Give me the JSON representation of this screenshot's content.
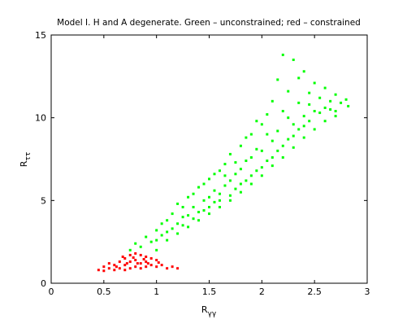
{
  "chart_data": {
    "type": "scatter",
    "title": "Model I. H and A degenerate. Green – unconstrained; red – constrained",
    "xlabel": "R",
    "xlabel_subscript": "γγ",
    "ylabel": "R",
    "ylabel_subscript": "ττ",
    "xlim": [
      0,
      3
    ],
    "ylim": [
      0,
      15
    ],
    "xticks": [
      0,
      0.5,
      1,
      1.5,
      2,
      2.5,
      3
    ],
    "yticks": [
      0,
      5,
      10,
      15
    ],
    "grid": false,
    "series": [
      {
        "color": "#00ff00",
        "x": [
          0.75,
          0.8,
          0.85,
          0.9,
          0.95,
          1.0,
          1.0,
          1.05,
          1.1,
          1.1,
          1.15,
          1.15,
          1.2,
          1.2,
          1.25,
          1.25,
          1.3,
          1.3,
          1.35,
          1.35,
          1.4,
          1.4,
          1.45,
          1.45,
          1.5,
          1.5,
          1.5,
          1.55,
          1.55,
          1.6,
          1.6,
          1.6,
          1.65,
          1.65,
          1.7,
          1.7,
          1.7,
          1.75,
          1.75,
          1.8,
          1.8,
          1.8,
          1.85,
          1.85,
          1.9,
          1.9,
          1.9,
          1.95,
          1.95,
          2.0,
          2.0,
          2.0,
          2.05,
          2.05,
          2.1,
          2.1,
          2.1,
          2.15,
          2.15,
          2.15,
          2.2,
          2.2,
          2.2,
          2.25,
          2.25,
          2.3,
          2.3,
          2.3,
          2.35,
          2.35,
          2.4,
          2.4,
          2.4,
          2.45,
          2.45,
          2.5,
          2.5,
          2.55,
          2.55,
          2.6,
          2.6,
          2.65,
          2.7,
          2.7,
          2.75,
          2.8,
          2.82,
          1.0,
          1.1,
          1.2,
          1.3,
          1.4,
          1.5,
          1.6,
          1.7,
          1.8,
          1.9,
          2.0,
          2.1,
          2.2,
          2.3,
          2.4,
          2.5,
          2.6,
          2.7,
          1.05,
          1.25,
          1.45,
          1.65,
          1.85,
          2.05,
          2.25,
          2.45,
          2.65,
          1.35,
          1.55,
          1.75,
          1.95,
          2.35
        ],
        "y": [
          2.0,
          2.4,
          2.2,
          2.8,
          2.5,
          3.2,
          2.6,
          2.9,
          3.8,
          3.1,
          4.2,
          3.3,
          3.6,
          4.8,
          4.0,
          3.5,
          5.2,
          4.1,
          3.9,
          4.6,
          5.8,
          4.3,
          5.0,
          4.4,
          6.3,
          5.2,
          4.6,
          5.6,
          4.9,
          6.8,
          5.4,
          5.0,
          7.2,
          5.9,
          6.2,
          5.3,
          7.8,
          6.6,
          5.7,
          8.3,
          6.9,
          6.0,
          7.4,
          6.2,
          9.0,
          7.6,
          6.5,
          8.1,
          6.8,
          9.6,
          8.0,
          7.0,
          10.2,
          7.4,
          11.0,
          8.6,
          7.6,
          12.3,
          9.2,
          8.0,
          13.8,
          10.4,
          8.3,
          11.6,
          8.7,
          13.5,
          9.6,
          8.9,
          12.4,
          9.3,
          12.8,
          10.1,
          9.5,
          11.5,
          9.8,
          12.1,
          10.4,
          11.2,
          10.3,
          11.8,
          10.6,
          11.0,
          11.4,
          10.4,
          10.9,
          11.1,
          10.7,
          2.0,
          2.6,
          3.0,
          3.4,
          3.8,
          4.2,
          4.6,
          5.0,
          5.5,
          6.0,
          6.5,
          7.1,
          7.6,
          8.2,
          8.8,
          9.3,
          9.8,
          10.1,
          3.6,
          4.6,
          6.0,
          6.5,
          8.8,
          9.0,
          10.0,
          10.8,
          10.5,
          5.4,
          6.6,
          7.3,
          9.8,
          10.9
        ]
      },
      {
        "color": "#ff0000",
        "x": [
          0.45,
          0.5,
          0.55,
          0.6,
          0.6,
          0.65,
          0.65,
          0.7,
          0.7,
          0.7,
          0.75,
          0.75,
          0.75,
          0.8,
          0.8,
          0.8,
          0.85,
          0.85,
          0.85,
          0.9,
          0.9,
          0.9,
          0.95,
          0.95,
          1.0,
          1.0,
          1.05,
          1.1,
          1.15,
          1.2,
          0.55,
          0.68,
          0.78,
          0.88,
          0.72,
          0.82,
          0.92,
          0.62,
          1.02,
          0.5
        ],
        "y": [
          0.8,
          1.0,
          0.9,
          1.1,
          0.8,
          1.3,
          0.9,
          1.5,
          1.1,
          0.8,
          1.7,
          1.3,
          0.9,
          1.8,
          1.4,
          1.0,
          1.7,
          1.2,
          0.9,
          1.6,
          1.3,
          1.0,
          1.5,
          1.1,
          1.4,
          1.0,
          1.1,
          0.9,
          1.0,
          0.9,
          1.2,
          1.6,
          1.55,
          1.45,
          1.2,
          1.2,
          1.2,
          1.0,
          1.25,
          0.75
        ]
      }
    ]
  }
}
